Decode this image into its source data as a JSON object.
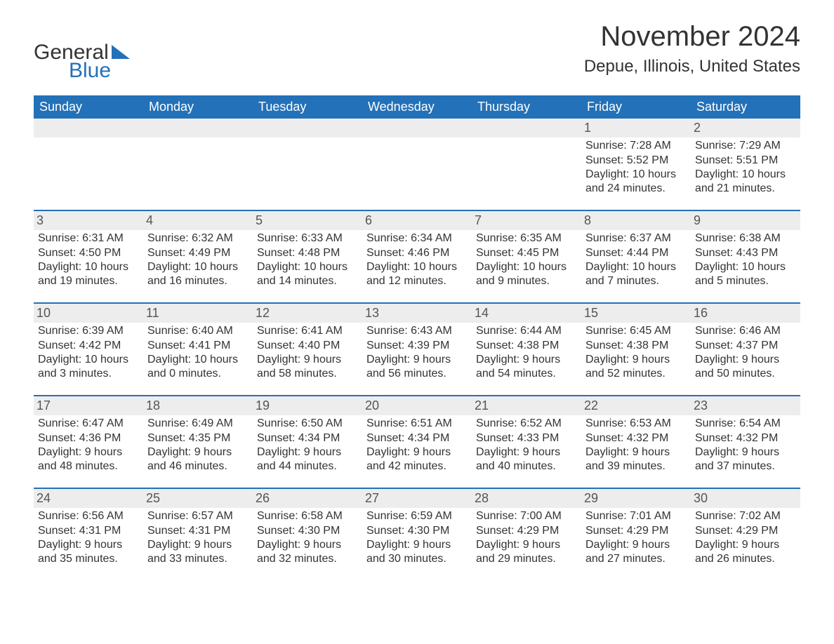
{
  "logo": {
    "word1": "General",
    "word2": "Blue",
    "icon_color": "#2371b8"
  },
  "colors": {
    "header_bg": "#2371b8",
    "header_text": "#ffffff",
    "daynum_bg": "#ededed",
    "body_text": "#333333",
    "rule": "#2371b8",
    "background": "#ffffff"
  },
  "typography": {
    "title_fontsize": 40,
    "location_fontsize": 24,
    "weekday_fontsize": 18,
    "daynum_fontsize": 18,
    "detail_fontsize": 16,
    "font_family": "Arial"
  },
  "title": "November 2024",
  "location": "Depue, Illinois, United States",
  "weekdays": [
    "Sunday",
    "Monday",
    "Tuesday",
    "Wednesday",
    "Thursday",
    "Friday",
    "Saturday"
  ],
  "weeks": [
    [
      {
        "blank": true
      },
      {
        "blank": true
      },
      {
        "blank": true
      },
      {
        "blank": true
      },
      {
        "blank": true
      },
      {
        "day": "1",
        "sunrise": "Sunrise: 7:28 AM",
        "sunset": "Sunset: 5:52 PM",
        "daylight1": "Daylight: 10 hours",
        "daylight2": "and 24 minutes."
      },
      {
        "day": "2",
        "sunrise": "Sunrise: 7:29 AM",
        "sunset": "Sunset: 5:51 PM",
        "daylight1": "Daylight: 10 hours",
        "daylight2": "and 21 minutes."
      }
    ],
    [
      {
        "day": "3",
        "sunrise": "Sunrise: 6:31 AM",
        "sunset": "Sunset: 4:50 PM",
        "daylight1": "Daylight: 10 hours",
        "daylight2": "and 19 minutes."
      },
      {
        "day": "4",
        "sunrise": "Sunrise: 6:32 AM",
        "sunset": "Sunset: 4:49 PM",
        "daylight1": "Daylight: 10 hours",
        "daylight2": "and 16 minutes."
      },
      {
        "day": "5",
        "sunrise": "Sunrise: 6:33 AM",
        "sunset": "Sunset: 4:48 PM",
        "daylight1": "Daylight: 10 hours",
        "daylight2": "and 14 minutes."
      },
      {
        "day": "6",
        "sunrise": "Sunrise: 6:34 AM",
        "sunset": "Sunset: 4:46 PM",
        "daylight1": "Daylight: 10 hours",
        "daylight2": "and 12 minutes."
      },
      {
        "day": "7",
        "sunrise": "Sunrise: 6:35 AM",
        "sunset": "Sunset: 4:45 PM",
        "daylight1": "Daylight: 10 hours",
        "daylight2": "and 9 minutes."
      },
      {
        "day": "8",
        "sunrise": "Sunrise: 6:37 AM",
        "sunset": "Sunset: 4:44 PM",
        "daylight1": "Daylight: 10 hours",
        "daylight2": "and 7 minutes."
      },
      {
        "day": "9",
        "sunrise": "Sunrise: 6:38 AM",
        "sunset": "Sunset: 4:43 PM",
        "daylight1": "Daylight: 10 hours",
        "daylight2": "and 5 minutes."
      }
    ],
    [
      {
        "day": "10",
        "sunrise": "Sunrise: 6:39 AM",
        "sunset": "Sunset: 4:42 PM",
        "daylight1": "Daylight: 10 hours",
        "daylight2": "and 3 minutes."
      },
      {
        "day": "11",
        "sunrise": "Sunrise: 6:40 AM",
        "sunset": "Sunset: 4:41 PM",
        "daylight1": "Daylight: 10 hours",
        "daylight2": "and 0 minutes."
      },
      {
        "day": "12",
        "sunrise": "Sunrise: 6:41 AM",
        "sunset": "Sunset: 4:40 PM",
        "daylight1": "Daylight: 9 hours",
        "daylight2": "and 58 minutes."
      },
      {
        "day": "13",
        "sunrise": "Sunrise: 6:43 AM",
        "sunset": "Sunset: 4:39 PM",
        "daylight1": "Daylight: 9 hours",
        "daylight2": "and 56 minutes."
      },
      {
        "day": "14",
        "sunrise": "Sunrise: 6:44 AM",
        "sunset": "Sunset: 4:38 PM",
        "daylight1": "Daylight: 9 hours",
        "daylight2": "and 54 minutes."
      },
      {
        "day": "15",
        "sunrise": "Sunrise: 6:45 AM",
        "sunset": "Sunset: 4:38 PM",
        "daylight1": "Daylight: 9 hours",
        "daylight2": "and 52 minutes."
      },
      {
        "day": "16",
        "sunrise": "Sunrise: 6:46 AM",
        "sunset": "Sunset: 4:37 PM",
        "daylight1": "Daylight: 9 hours",
        "daylight2": "and 50 minutes."
      }
    ],
    [
      {
        "day": "17",
        "sunrise": "Sunrise: 6:47 AM",
        "sunset": "Sunset: 4:36 PM",
        "daylight1": "Daylight: 9 hours",
        "daylight2": "and 48 minutes."
      },
      {
        "day": "18",
        "sunrise": "Sunrise: 6:49 AM",
        "sunset": "Sunset: 4:35 PM",
        "daylight1": "Daylight: 9 hours",
        "daylight2": "and 46 minutes."
      },
      {
        "day": "19",
        "sunrise": "Sunrise: 6:50 AM",
        "sunset": "Sunset: 4:34 PM",
        "daylight1": "Daylight: 9 hours",
        "daylight2": "and 44 minutes."
      },
      {
        "day": "20",
        "sunrise": "Sunrise: 6:51 AM",
        "sunset": "Sunset: 4:34 PM",
        "daylight1": "Daylight: 9 hours",
        "daylight2": "and 42 minutes."
      },
      {
        "day": "21",
        "sunrise": "Sunrise: 6:52 AM",
        "sunset": "Sunset: 4:33 PM",
        "daylight1": "Daylight: 9 hours",
        "daylight2": "and 40 minutes."
      },
      {
        "day": "22",
        "sunrise": "Sunrise: 6:53 AM",
        "sunset": "Sunset: 4:32 PM",
        "daylight1": "Daylight: 9 hours",
        "daylight2": "and 39 minutes."
      },
      {
        "day": "23",
        "sunrise": "Sunrise: 6:54 AM",
        "sunset": "Sunset: 4:32 PM",
        "daylight1": "Daylight: 9 hours",
        "daylight2": "and 37 minutes."
      }
    ],
    [
      {
        "day": "24",
        "sunrise": "Sunrise: 6:56 AM",
        "sunset": "Sunset: 4:31 PM",
        "daylight1": "Daylight: 9 hours",
        "daylight2": "and 35 minutes."
      },
      {
        "day": "25",
        "sunrise": "Sunrise: 6:57 AM",
        "sunset": "Sunset: 4:31 PM",
        "daylight1": "Daylight: 9 hours",
        "daylight2": "and 33 minutes."
      },
      {
        "day": "26",
        "sunrise": "Sunrise: 6:58 AM",
        "sunset": "Sunset: 4:30 PM",
        "daylight1": "Daylight: 9 hours",
        "daylight2": "and 32 minutes."
      },
      {
        "day": "27",
        "sunrise": "Sunrise: 6:59 AM",
        "sunset": "Sunset: 4:30 PM",
        "daylight1": "Daylight: 9 hours",
        "daylight2": "and 30 minutes."
      },
      {
        "day": "28",
        "sunrise": "Sunrise: 7:00 AM",
        "sunset": "Sunset: 4:29 PM",
        "daylight1": "Daylight: 9 hours",
        "daylight2": "and 29 minutes."
      },
      {
        "day": "29",
        "sunrise": "Sunrise: 7:01 AM",
        "sunset": "Sunset: 4:29 PM",
        "daylight1": "Daylight: 9 hours",
        "daylight2": "and 27 minutes."
      },
      {
        "day": "30",
        "sunrise": "Sunrise: 7:02 AM",
        "sunset": "Sunset: 4:29 PM",
        "daylight1": "Daylight: 9 hours",
        "daylight2": "and 26 minutes."
      }
    ]
  ]
}
